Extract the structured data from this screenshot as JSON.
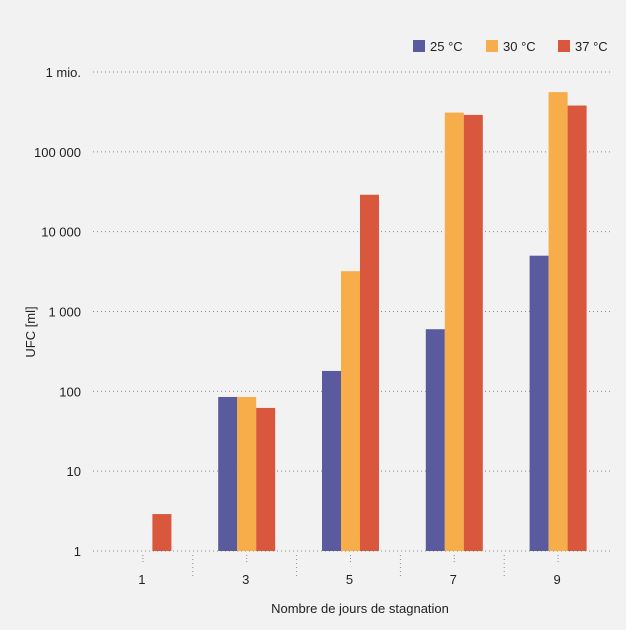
{
  "chart_data": {
    "type": "bar",
    "title": "",
    "xlabel": "Nombre de jours de stagnation",
    "ylabel": "UFC [ml]",
    "yscale": "log",
    "ylim": [
      1,
      1000000
    ],
    "categories": [
      "1",
      "3",
      "5",
      "7",
      "9"
    ],
    "y_ticks": [
      {
        "value": 1,
        "label": "1"
      },
      {
        "value": 10,
        "label": "10"
      },
      {
        "value": 100,
        "label": "100"
      },
      {
        "value": 1000,
        "label": "1 000"
      },
      {
        "value": 10000,
        "label": "10 000"
      },
      {
        "value": 100000,
        "label": "100 000"
      },
      {
        "value": 1000000,
        "label": "1 mio."
      }
    ],
    "grid": "horizontal dotted",
    "legend_position": "top-right",
    "series": [
      {
        "name": "25 °C",
        "color": "#5a5a9e",
        "values": [
          null,
          85,
          180,
          600,
          5000
        ]
      },
      {
        "name": "30 °C",
        "color": "#f6ad4a",
        "values": [
          null,
          85,
          3200,
          310000,
          560000
        ]
      },
      {
        "name": "37 °C",
        "color": "#d9573c",
        "values": [
          2.9,
          62,
          29000,
          290000,
          380000
        ]
      }
    ]
  }
}
